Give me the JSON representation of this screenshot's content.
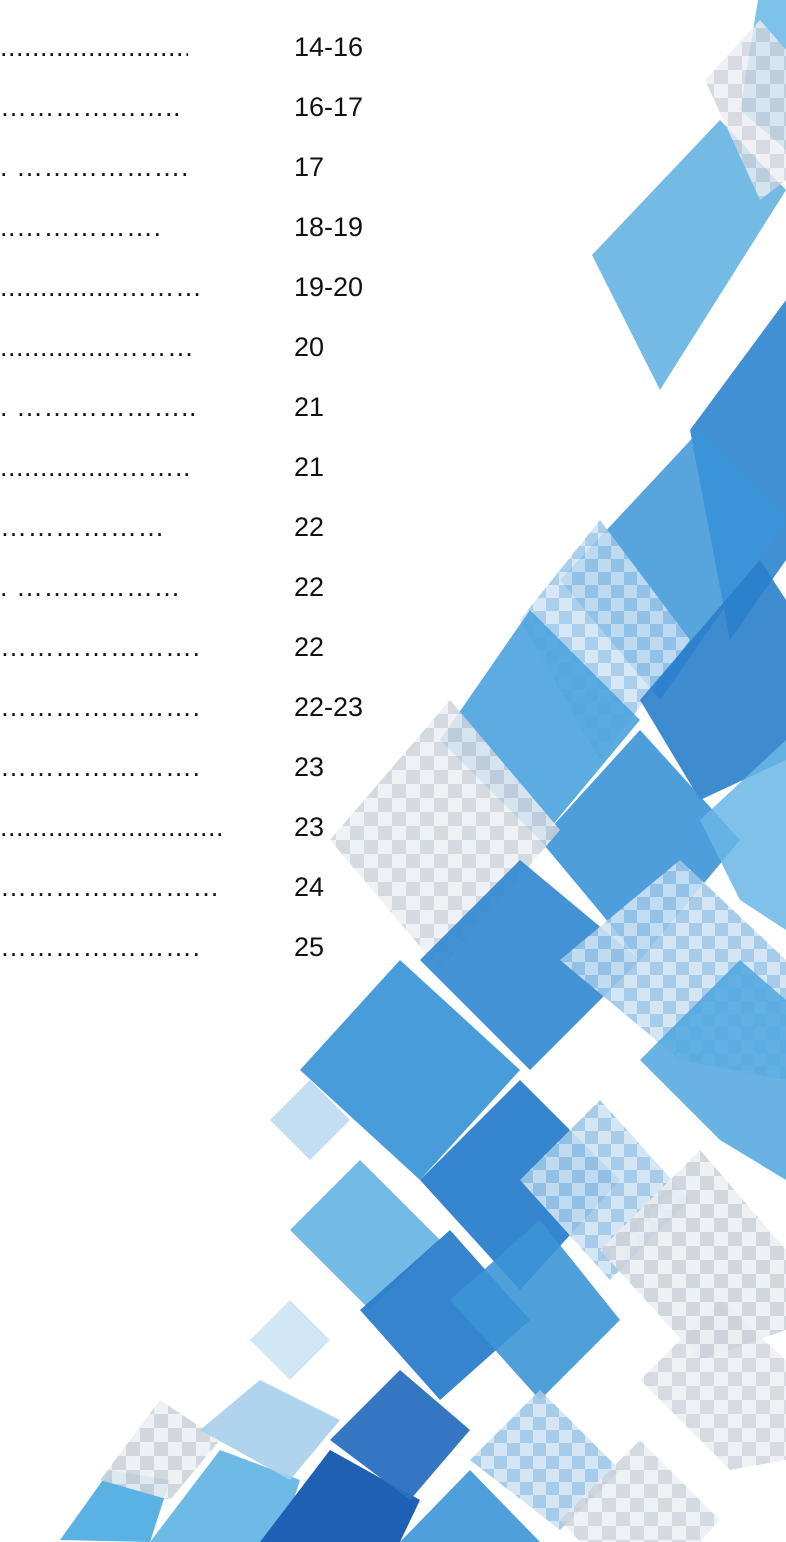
{
  "toc": {
    "entries": [
      {
        "leader": "...........................",
        "page": "14-16"
      },
      {
        "leader": "………………..",
        "page": "16-17"
      },
      {
        "leader": ". ……………….",
        "page": "17"
      },
      {
        "leader": "..…………….",
        "page": "18-19"
      },
      {
        "leader": "...............………",
        "page": "19-20"
      },
      {
        "leader": "..............………",
        "page": "20"
      },
      {
        "leader": ". ………………..",
        "page": "21"
      },
      {
        "leader": "...............……..",
        "page": "21"
      },
      {
        "leader": "………………",
        "page": "22"
      },
      {
        "leader": ". ………………",
        "page": "22"
      },
      {
        "leader": "………………….",
        "page": "22"
      },
      {
        "leader": "………………….",
        "page": "22-23"
      },
      {
        "leader": "………………….",
        "page": "23"
      },
      {
        "leader": "...............................",
        "page": "23"
      },
      {
        "leader": "……………………",
        "page": "24"
      },
      {
        "leader": "………………….",
        "page": "25"
      }
    ]
  },
  "decoration": {
    "colors": {
      "blue_light": "#5fb3e4",
      "blue_mid": "#3a93d6",
      "blue_dark": "#1f66b8",
      "blue_pale": "#a7cdea",
      "checker_light": "#e6e9ee",
      "checker_dark": "#c9ced6"
    }
  }
}
